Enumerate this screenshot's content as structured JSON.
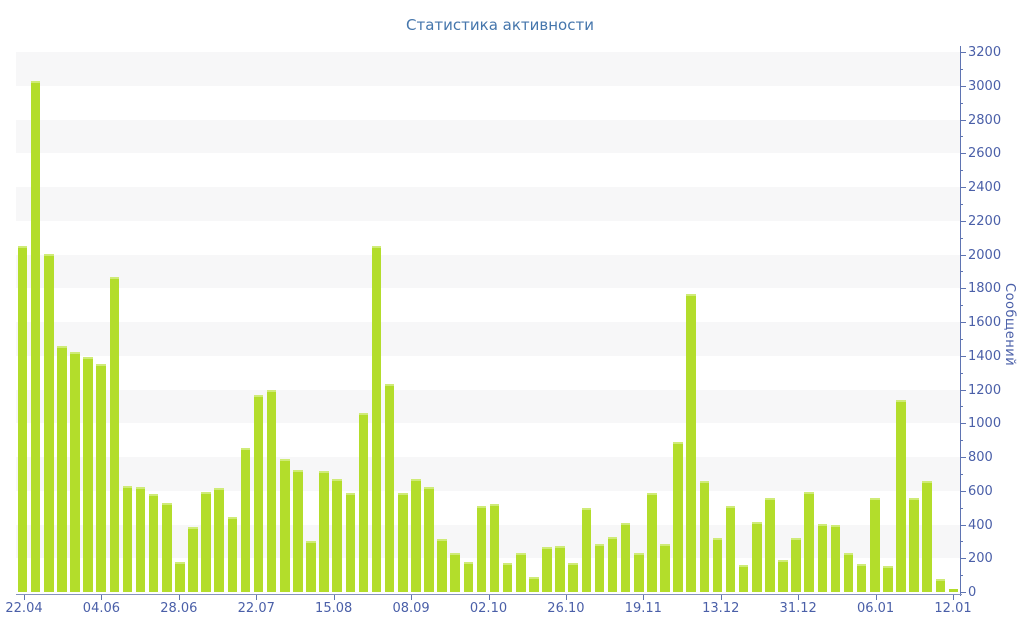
{
  "title": "Статистика активности",
  "chart_data": {
    "type": "bar",
    "title": "Статистика активности",
    "xlabel": "",
    "ylabel": "Сообщений",
    "ylim": [
      0,
      3200
    ],
    "y_tick_step": 200,
    "y_minor_tick_step": 100,
    "grid": "striped-horizontal-bands",
    "legend": "none",
    "bar_color": "#b3dd2b",
    "bar_top_highlight": "#cfeb77",
    "stripe_color": "#f7f7f8",
    "axis_color": "#5f74b2",
    "label_color": "#4a5fa8",
    "title_color": "#4576ac",
    "x_tick_labels": [
      "22.04",
      "04.06",
      "28.06",
      "22.07",
      "15.08",
      "08.09",
      "02.10",
      "26.10",
      "19.11",
      "13.12",
      "31.12",
      "06.01",
      "12.01"
    ],
    "values": [
      2050,
      3030,
      2005,
      1460,
      1420,
      1395,
      1350,
      1865,
      630,
      620,
      580,
      530,
      180,
      385,
      595,
      615,
      445,
      855,
      1170,
      1200,
      790,
      725,
      300,
      720,
      670,
      585,
      1060,
      2050,
      1235,
      585,
      670,
      625,
      315,
      230,
      175,
      510,
      520,
      170,
      230,
      90,
      265,
      275,
      170,
      500,
      285,
      325,
      410,
      230,
      585,
      285,
      890,
      1765,
      655,
      320,
      510,
      160,
      415,
      560,
      190,
      320,
      595,
      405,
      395,
      230,
      165,
      560,
      155,
      1140,
      555,
      655,
      75,
      15
    ]
  }
}
